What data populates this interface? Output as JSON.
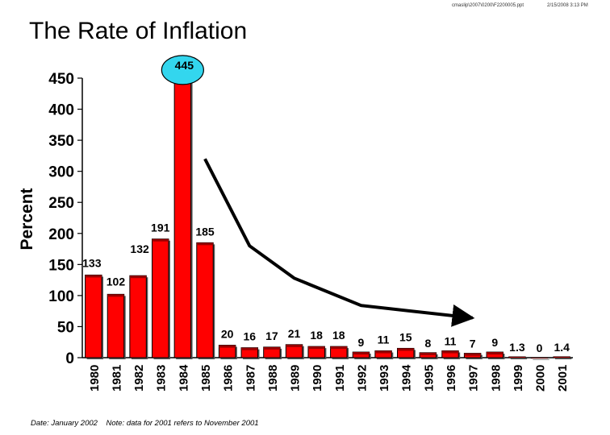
{
  "header": {
    "path": "cmaslip\\2007\\0200\\F2200005.ppt",
    "timestamp": "2/15/2008 3:13 PM"
  },
  "chart_data": {
    "type": "bar",
    "title": "The Rate of Inflation",
    "ylabel": "Percent",
    "xlabel": "",
    "ylim": [
      0,
      450
    ],
    "yticks": [
      0,
      50,
      100,
      150,
      200,
      250,
      300,
      350,
      400,
      450
    ],
    "categories": [
      "1980",
      "1981",
      "1982",
      "1983",
      "1984",
      "1985",
      "1986",
      "1987",
      "1988",
      "1989",
      "1990",
      "1991",
      "1992",
      "1993",
      "1994",
      "1995",
      "1996",
      "1997",
      "1998",
      "1999",
      "2000",
      "2001"
    ],
    "values": [
      133,
      102,
      132,
      191,
      445,
      185,
      20,
      16,
      17,
      21,
      18,
      18,
      9,
      11,
      15,
      8,
      11,
      7,
      9,
      1.3,
      0,
      1.4
    ],
    "data_labels": [
      "133",
      "102",
      "132",
      "191",
      "445",
      "185",
      "20",
      "16",
      "17",
      "21",
      "18",
      "18",
      "9",
      "11",
      "15",
      "8",
      "11",
      "7",
      "9",
      "1.3",
      "0",
      "1.4"
    ],
    "highlight": {
      "category": "1984",
      "label": "445",
      "color": "#33d6ee"
    },
    "trend_arrow": {
      "x": [
        "1985",
        "1987",
        "1989",
        "1992",
        "1997"
      ],
      "y": [
        320,
        180,
        128,
        84,
        64
      ]
    },
    "bar_color": "#ff0000",
    "grid": false,
    "legend": "none"
  },
  "footnote": {
    "date": "Date: January 2002",
    "note": "Note: data for 2001 refers to November 2001"
  }
}
